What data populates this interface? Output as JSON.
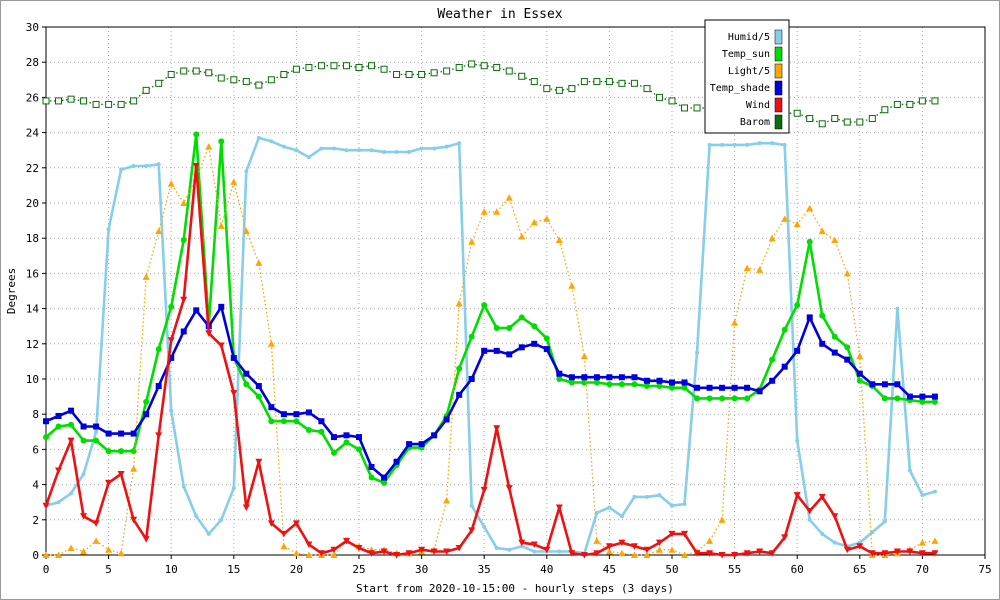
{
  "chart_data": {
    "type": "line",
    "title": "Weather in Essex",
    "xlabel": "Start from 2020-10-15:00 - hourly steps (3 days)",
    "ylabel": "Degrees",
    "xlim": [
      0,
      75
    ],
    "ylim": [
      0,
      30
    ],
    "x_ticks": [
      0,
      5,
      10,
      15,
      20,
      25,
      30,
      35,
      40,
      45,
      50,
      55,
      60,
      65,
      70,
      75
    ],
    "y_ticks": [
      0,
      2,
      4,
      6,
      8,
      10,
      12,
      14,
      16,
      18,
      20,
      22,
      24,
      26,
      28,
      30
    ],
    "grid": true,
    "legend_position": "top-right",
    "series": [
      {
        "name": "Humid/5",
        "color": "#87ceeb",
        "line_style": "solid",
        "marker": "dot",
        "values": [
          2.8,
          3.0,
          3.5,
          4.6,
          7.0,
          18.5,
          21.9,
          22.1,
          22.1,
          22.2,
          8.2,
          3.9,
          2.2,
          1.2,
          2.0,
          3.8,
          21.8,
          23.7,
          23.5,
          23.2,
          23.0,
          22.6,
          23.1,
          23.1,
          23.0,
          23.0,
          23.0,
          22.9,
          22.9,
          22.9,
          23.1,
          23.1,
          23.2,
          23.4,
          2.8,
          1.6,
          0.4,
          0.3,
          0.5,
          0.2,
          0.2,
          0.2,
          0.2,
          0.1,
          2.4,
          2.7,
          2.2,
          3.3,
          3.3,
          3.4,
          2.8,
          2.9,
          11.5,
          23.3,
          23.3,
          23.3,
          23.3,
          23.4,
          23.4,
          23.3,
          6.5,
          2.0,
          1.2,
          0.7,
          0.5,
          0.7,
          1.3,
          1.9,
          14.0,
          4.8,
          3.4,
          3.6
        ]
      },
      {
        "name": "Temp_sun",
        "color": "#00dd00",
        "line_style": "solid",
        "marker": "circle",
        "values": [
          6.7,
          7.3,
          7.4,
          6.5,
          6.5,
          5.9,
          5.9,
          5.9,
          8.7,
          11.7,
          14.1,
          17.9,
          23.9,
          13.1,
          23.5,
          11.2,
          9.7,
          9.0,
          7.6,
          7.6,
          7.6,
          7.1,
          7.0,
          5.8,
          6.4,
          6.0,
          4.4,
          4.1,
          5.1,
          6.1,
          6.1,
          6.8,
          7.9,
          10.6,
          12.4,
          14.2,
          12.9,
          12.9,
          13.5,
          13.0,
          12.3,
          10.0,
          9.8,
          9.8,
          9.8,
          9.7,
          9.7,
          9.7,
          9.6,
          9.6,
          9.5,
          9.5,
          8.9,
          8.9,
          8.9,
          8.9,
          8.9,
          9.4,
          11.1,
          12.8,
          14.2,
          17.8,
          13.6,
          12.4,
          11.8,
          9.9,
          9.6,
          8.9,
          8.9,
          8.8,
          8.7,
          8.7
        ]
      },
      {
        "name": "Light/5",
        "color": "#ffa500",
        "line_style": "dotted",
        "marker": "triangle",
        "values": [
          0.0,
          0.0,
          0.4,
          0.2,
          0.8,
          0.3,
          0.1,
          4.9,
          15.8,
          18.4,
          21.1,
          20.0,
          21.4,
          23.2,
          18.7,
          21.2,
          18.4,
          16.6,
          12.0,
          0.5,
          0.1,
          0.0,
          0.0,
          0.0,
          0.8,
          0.5,
          0.3,
          0.3,
          0.1,
          0.1,
          0.2,
          0.3,
          3.1,
          14.3,
          17.8,
          19.5,
          19.5,
          20.3,
          18.1,
          18.9,
          19.1,
          17.9,
          15.3,
          11.3,
          0.8,
          0.2,
          0.1,
          0.0,
          0.0,
          0.3,
          0.3,
          0.0,
          0.2,
          0.8,
          2.0,
          13.2,
          16.3,
          16.2,
          18.0,
          19.1,
          18.8,
          19.7,
          18.4,
          17.9,
          16.0,
          11.3,
          0.0,
          0.0,
          0.1,
          0.3,
          0.7,
          0.8
        ]
      },
      {
        "name": "Temp_shade",
        "color": "#0000dd",
        "line_style": "solid",
        "marker": "square",
        "values": [
          7.6,
          7.9,
          8.2,
          7.3,
          7.3,
          6.9,
          6.9,
          6.9,
          8.0,
          9.6,
          11.2,
          12.7,
          13.9,
          13.0,
          14.1,
          11.2,
          10.3,
          9.6,
          8.4,
          8.0,
          8.0,
          8.1,
          7.6,
          6.7,
          6.8,
          6.7,
          5.0,
          4.4,
          5.3,
          6.3,
          6.3,
          6.8,
          7.7,
          9.1,
          10.0,
          11.6,
          11.6,
          11.4,
          11.8,
          12.0,
          11.7,
          10.3,
          10.1,
          10.1,
          10.1,
          10.1,
          10.1,
          10.1,
          9.9,
          9.9,
          9.8,
          9.8,
          9.5,
          9.5,
          9.5,
          9.5,
          9.5,
          9.3,
          9.9,
          10.7,
          11.6,
          13.5,
          12.0,
          11.5,
          11.1,
          10.3,
          9.7,
          9.7,
          9.7,
          9.0,
          9.0,
          9.0
        ]
      },
      {
        "name": "Wind",
        "color": "#ee1111",
        "line_style": "solid",
        "marker": "triangle-down",
        "values": [
          2.8,
          4.8,
          6.5,
          2.2,
          1.8,
          4.1,
          4.6,
          2.0,
          0.9,
          6.8,
          12.2,
          14.5,
          22.1,
          12.6,
          11.9,
          9.2,
          2.7,
          5.3,
          1.8,
          1.2,
          1.8,
          0.6,
          0.1,
          0.3,
          0.8,
          0.4,
          0.1,
          0.2,
          0.0,
          0.1,
          0.3,
          0.2,
          0.2,
          0.4,
          1.4,
          3.7,
          7.2,
          3.8,
          0.7,
          0.6,
          0.3,
          2.7,
          0.1,
          0.0,
          0.1,
          0.5,
          0.7,
          0.5,
          0.3,
          0.7,
          1.2,
          1.2,
          0.1,
          0.1,
          0.0,
          0.0,
          0.1,
          0.2,
          0.1,
          1.0,
          3.4,
          2.5,
          3.3,
          2.2,
          0.3,
          0.5,
          0.1,
          0.1,
          0.2,
          0.2,
          0.1,
          0.1
        ]
      },
      {
        "name": "Barom",
        "color": "#0a6e0a",
        "line_style": "dotted",
        "marker": "hollow-square",
        "values": [
          25.8,
          25.8,
          25.9,
          25.8,
          25.6,
          25.6,
          25.6,
          25.8,
          26.4,
          26.8,
          27.3,
          27.5,
          27.5,
          27.4,
          27.1,
          27.0,
          26.9,
          26.7,
          27.0,
          27.3,
          27.6,
          27.7,
          27.8,
          27.8,
          27.8,
          27.7,
          27.8,
          27.6,
          27.3,
          27.3,
          27.3,
          27.4,
          27.5,
          27.7,
          27.9,
          27.8,
          27.7,
          27.5,
          27.2,
          26.9,
          26.5,
          26.4,
          26.5,
          26.9,
          26.9,
          26.9,
          26.8,
          26.8,
          26.5,
          26.0,
          25.8,
          25.4,
          25.4,
          25.4,
          25.4,
          25.4,
          25.4,
          25.2,
          25.2,
          25.1,
          25.1,
          24.8,
          24.5,
          24.8,
          24.6,
          24.6,
          24.8,
          25.3,
          25.6,
          25.6,
          25.8,
          25.8
        ]
      }
    ]
  }
}
